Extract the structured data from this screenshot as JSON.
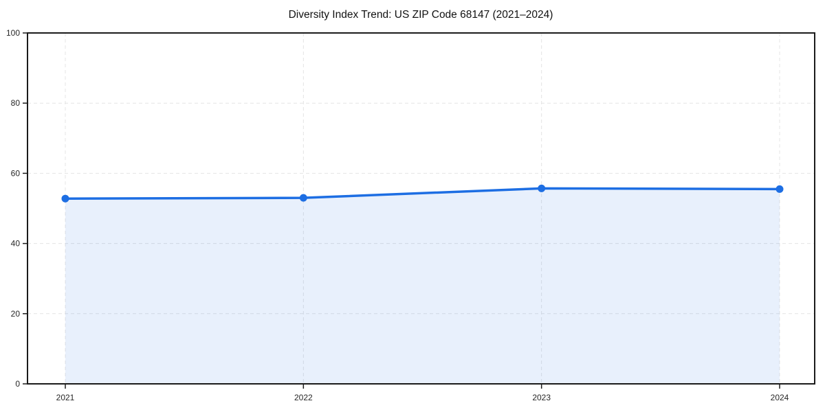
{
  "title": "Diversity Index Trend: US ZIP Code 68147 (2021–2024)",
  "chart_data": {
    "type": "area",
    "title": "Diversity Index Trend: US ZIP Code 68147 (2021–2024)",
    "categories": [
      "2021",
      "2022",
      "2023",
      "2024"
    ],
    "series": [
      {
        "name": "Diversity Index",
        "values": [
          52.8,
          53.0,
          55.7,
          55.5
        ]
      }
    ],
    "xlabel": "",
    "ylabel": "",
    "ylim": [
      0,
      100
    ],
    "yticks": [
      0,
      20,
      40,
      60,
      80,
      100
    ],
    "grid": true,
    "grid_style": "dashed",
    "legend_position": "none",
    "colors": {
      "line": "#1d6ee3",
      "fill": "rgba(29,110,227,0.10)",
      "marker": "#1d6ee3",
      "grid": "#e4e4e4",
      "axis": "#1a1a1a",
      "tick_label": "#262626",
      "background": "#ffffff"
    }
  }
}
